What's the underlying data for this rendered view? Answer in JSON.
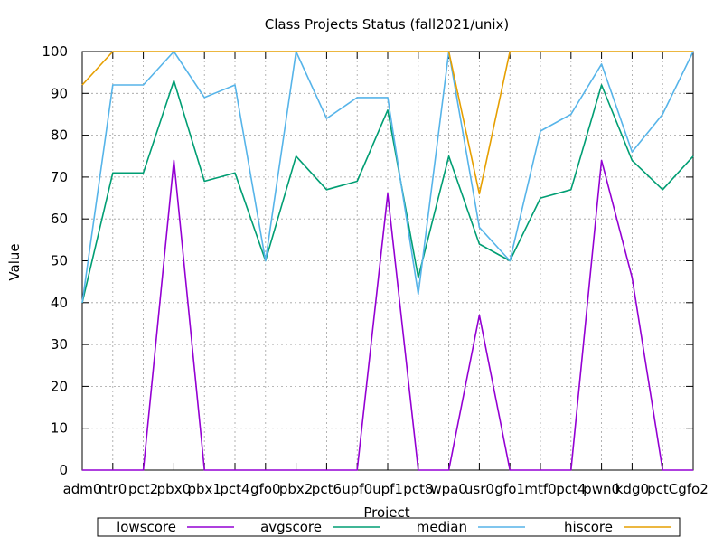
{
  "chart_data": {
    "type": "line",
    "title": "Class Projects Status (fall2021/unix)",
    "xlabel": "Project",
    "ylabel": "Value",
    "ylim": [
      0,
      100
    ],
    "yticks": [
      0,
      10,
      20,
      30,
      40,
      50,
      60,
      70,
      80,
      90,
      100
    ],
    "grid": true,
    "legend_position": "bottom",
    "categories": [
      "adm0",
      "ntr0",
      "pct2",
      "pbx0",
      "pbx1",
      "pct4",
      "gfo0",
      "pbx2",
      "pct6",
      "upf0",
      "upf1",
      "pct8",
      "wpa0",
      "usr0",
      "gfo1",
      "mtf0",
      "pct4",
      "pwn0",
      "kdg0",
      "pctC",
      "gfo2"
    ],
    "series": [
      {
        "name": "lowscore",
        "color": "#9400d3",
        "values": [
          0,
          0,
          0,
          74,
          0,
          0,
          0,
          0,
          0,
          0,
          66,
          0,
          0,
          37,
          0,
          0,
          0,
          74,
          46,
          0,
          0
        ]
      },
      {
        "name": "avgscore",
        "color": "#009e73",
        "values": [
          40,
          71,
          71,
          93,
          69,
          71,
          50,
          75,
          67,
          69,
          86,
          46,
          75,
          54,
          50,
          65,
          67,
          92,
          74,
          67,
          75
        ]
      },
      {
        "name": "median",
        "color": "#56b4e9",
        "values": [
          40,
          92,
          92,
          100,
          89,
          92,
          50,
          100,
          84,
          89,
          89,
          42,
          100,
          58,
          50,
          81,
          85,
          97,
          76,
          85,
          100
        ]
      },
      {
        "name": "hiscore",
        "color": "#e69f00",
        "values": [
          92,
          100,
          100,
          100,
          100,
          100,
          100,
          100,
          100,
          100,
          100,
          100,
          100,
          66,
          100,
          100,
          100,
          100,
          100,
          100,
          100
        ]
      }
    ]
  }
}
